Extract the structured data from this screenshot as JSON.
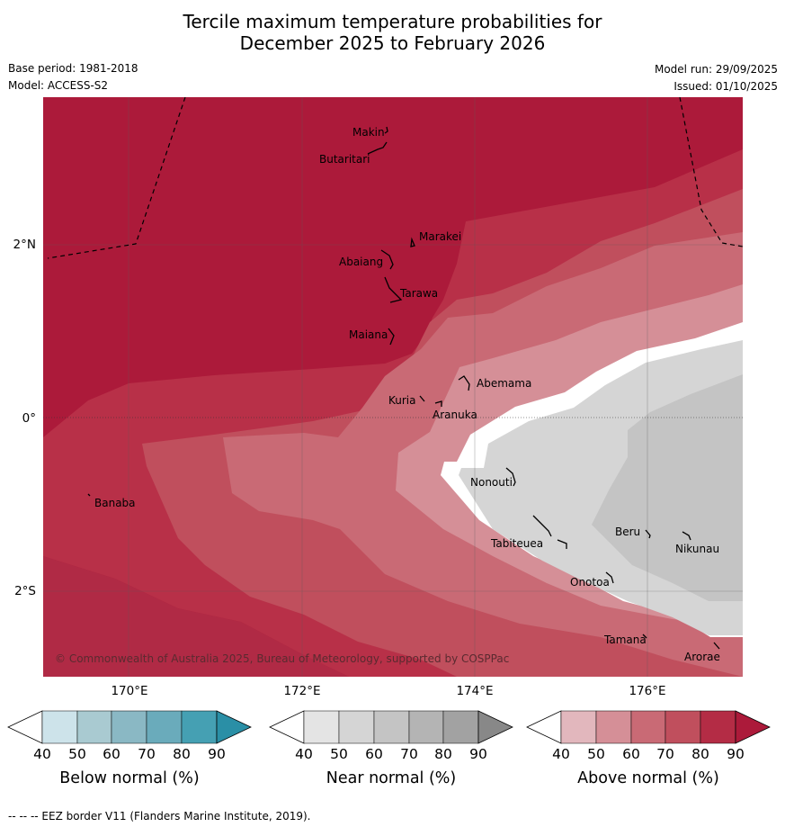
{
  "title": {
    "line1": "Tercile maximum temperature probabilities for",
    "line2": "December 2025 to February 2026"
  },
  "meta": {
    "base_period": "Base period: 1981-2018",
    "model": "Model: ACCESS-S2",
    "model_run": "Model run: 29/09/2025",
    "issued": "Issued: 01/10/2025"
  },
  "map": {
    "lon_labels": [
      "170°E",
      "172°E",
      "174°E",
      "176°E"
    ],
    "lat_labels": [
      "2°N",
      "0°",
      "2°S"
    ],
    "islands": [
      "Makin",
      "Butaritari",
      "Marakei",
      "Abaiang",
      "Tarawa",
      "Maiana",
      "Abemama",
      "Kuria",
      "Aranuka",
      "Banaba",
      "Nonouti",
      "Beru",
      "Tabiteuea",
      "Nikunau",
      "Onotoa",
      "Tamana",
      "Arorae"
    ],
    "copyright": "© Commonwealth of Australia 2025, Bureau of Meteorology, supported by COSPPac"
  },
  "colorbars": [
    {
      "title": "Below normal (%)",
      "ticks": [
        "40",
        "50",
        "60",
        "70",
        "80",
        "90"
      ],
      "colors": [
        "#cde3ea",
        "#a9cad1",
        "#8ab8c4",
        "#6aabbb",
        "#45a0b3",
        "#2a8fa6"
      ]
    },
    {
      "title": "Near normal (%)",
      "ticks": [
        "40",
        "50",
        "60",
        "70",
        "80",
        "90"
      ],
      "colors": [
        "#e4e4e4",
        "#d5d5d5",
        "#c4c4c4",
        "#b4b4b4",
        "#a2a2a2",
        "#888888"
      ]
    },
    {
      "title": "Above normal (%)",
      "ticks": [
        "40",
        "50",
        "60",
        "70",
        "80",
        "90"
      ],
      "colors": [
        "#e2b7bd",
        "#d58f97",
        "#c96a75",
        "#c04f5d",
        "#b42c45",
        "#ac1a3a"
      ]
    }
  ],
  "footer": "--  --  -- EEZ border V11 (Flanders Marine Institute, 2019)."
}
